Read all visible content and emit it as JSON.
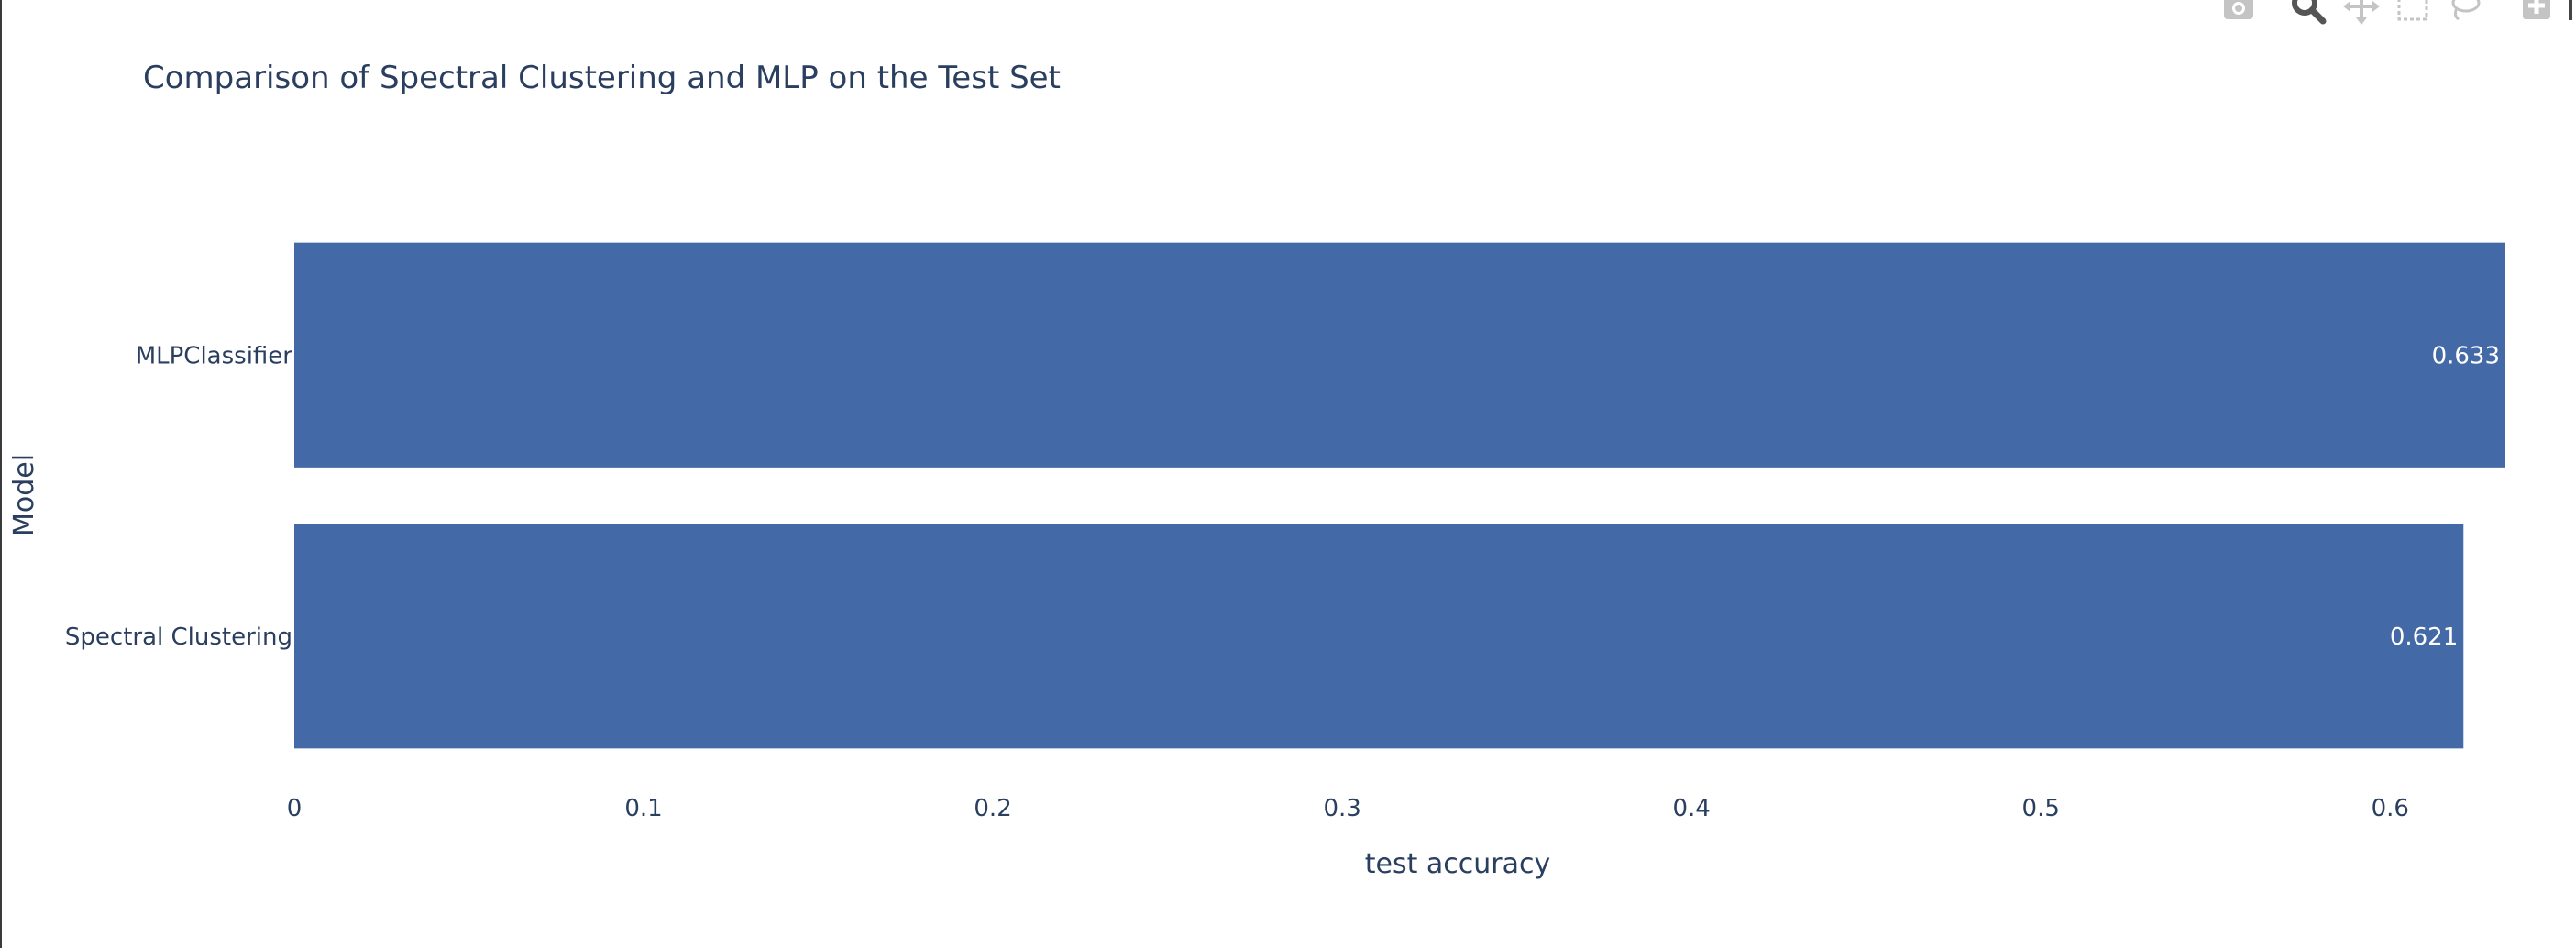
{
  "chart_data": {
    "type": "bar",
    "orientation": "horizontal",
    "title": "Comparison of Spectral Clustering and MLP on the Test Set",
    "xlabel": "test accuracy",
    "ylabel": "Model",
    "categories": [
      "MLPClassifier",
      "Spectral Clustering"
    ],
    "values": [
      0.633,
      0.621
    ],
    "data_labels": [
      "0.633",
      "0.621"
    ],
    "xlim": [
      0,
      0.633
    ],
    "x_ticks": [
      0,
      0.1,
      0.2,
      0.3,
      0.4,
      0.5,
      0.6
    ],
    "x_tick_labels": [
      "0",
      "0.1",
      "0.2",
      "0.3",
      "0.4",
      "0.5",
      "0.6"
    ],
    "bar_color": "#4469a7",
    "grid": false,
    "legend": "none"
  },
  "modebar": {
    "icons": [
      "camera-icon",
      "zoom-icon",
      "pan-icon",
      "box-select-icon",
      "lasso-select-icon",
      "zoom-in-icon"
    ]
  }
}
